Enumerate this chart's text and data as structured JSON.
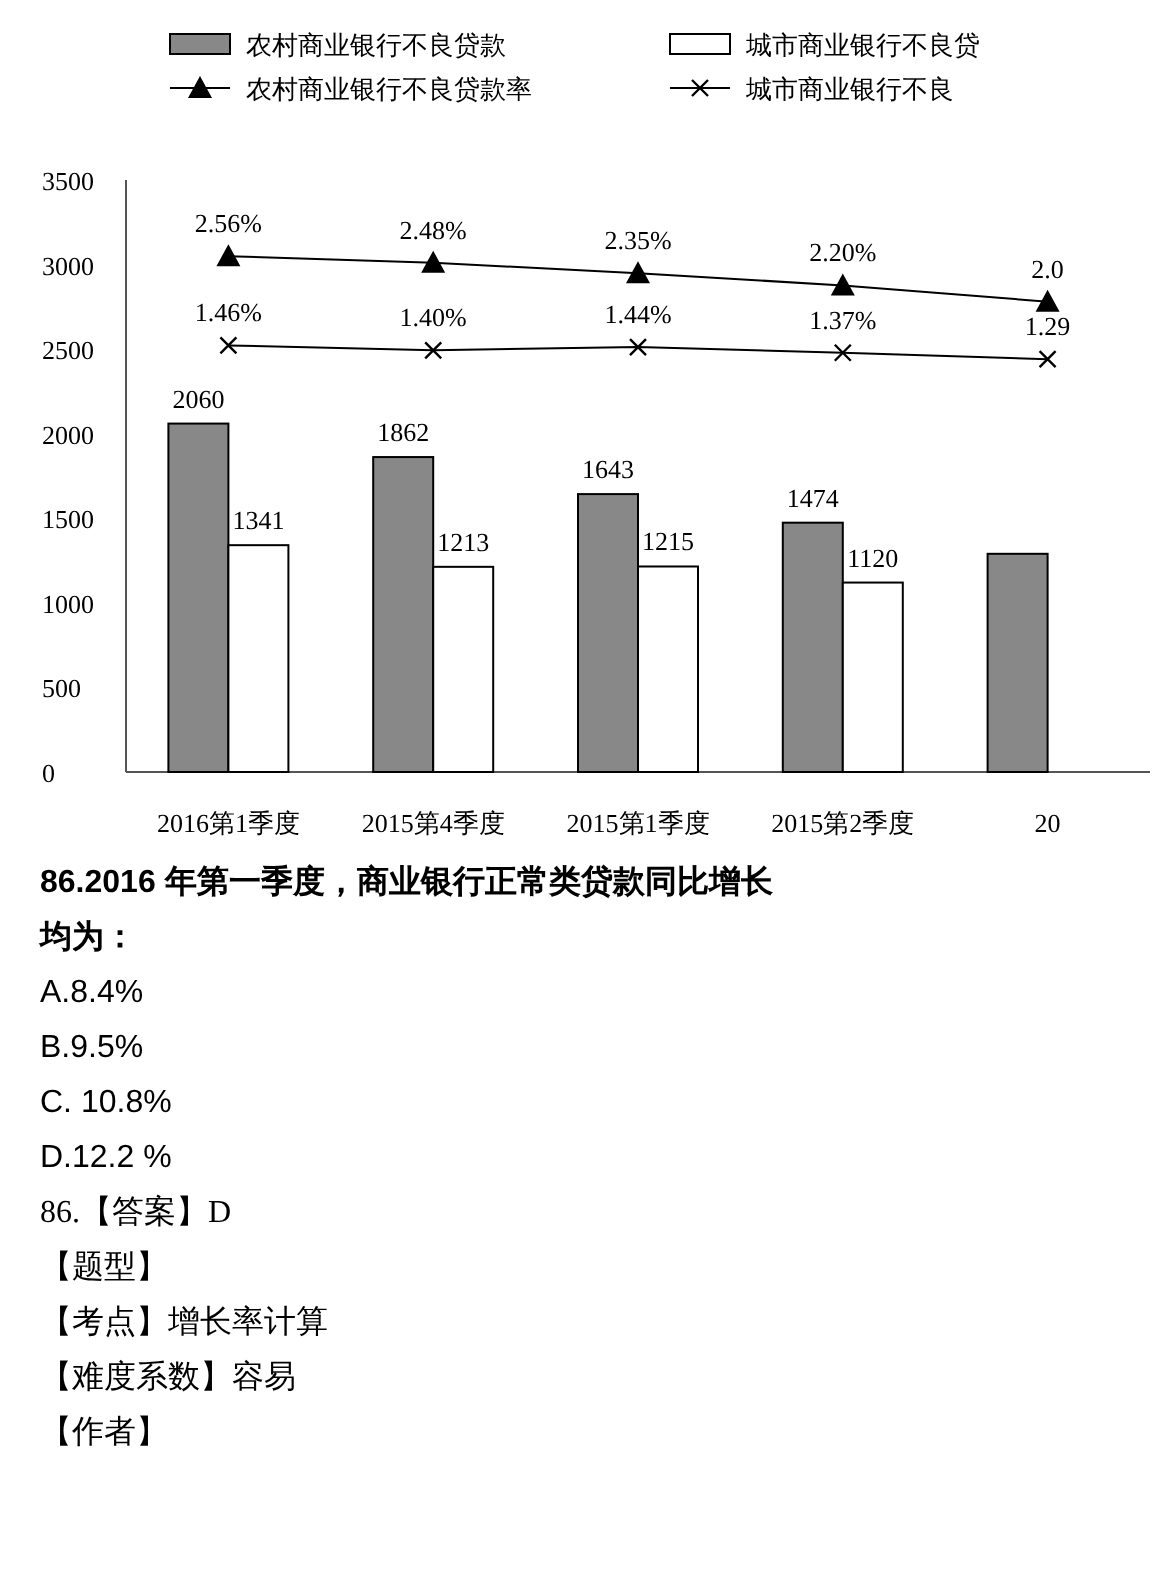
{
  "chart_data": {
    "type": "bar",
    "categories": [
      "2016第1季度",
      "2015第4季度",
      "2015第1季度",
      "2015第2季度",
      "20"
    ],
    "ylim": [
      0,
      3500
    ],
    "yticks": [
      0,
      500,
      1000,
      1500,
      2000,
      2500,
      3000,
      3500
    ],
    "y2lim": [
      -3.8,
      3.5
    ],
    "legend": "top",
    "grid": false,
    "series": [
      {
        "name": "农村商业银行不良贷款",
        "color": "#888888",
        "values": [
          2060,
          1862,
          1643,
          1474,
          1290
        ],
        "value_labels": [
          "2060",
          "1862",
          "1643",
          "1474",
          null
        ]
      },
      {
        "name": "城市商业银行不良贷",
        "color": "#ffffff",
        "values": [
          1341,
          1213,
          1215,
          1120,
          null
        ],
        "value_labels": [
          "1341",
          "1213",
          "1215",
          "1120",
          null
        ]
      },
      {
        "name": "农村商业银行不良贷款率",
        "type": "line",
        "axis": "y2",
        "marker": "triangle",
        "color": "#000000",
        "values": [
          2.56,
          2.48,
          2.35,
          2.2,
          2.0
        ],
        "value_labels": [
          "2.56%",
          "2.48%",
          "2.35%",
          "2.20%",
          "2.0"
        ]
      },
      {
        "name": "城市商业银行不良",
        "type": "line",
        "axis": "y2",
        "marker": "cross",
        "color": "#000000",
        "values": [
          1.46,
          1.4,
          1.44,
          1.37,
          1.29
        ],
        "value_labels": [
          "1.46%",
          "1.40%",
          "1.44%",
          "1.37%",
          "1.29"
        ]
      }
    ],
    "annotations": [
      "86.2016 年第一季度，商业银行正常类贷款同比增长",
      "均为：",
      "A.8.4%",
      "B.9.5%",
      "C. 10.8%",
      "D.12.2 %",
      "86.【答案】D",
      "【题型】",
      "【考点】增长率计算",
      "【难度系数】容易",
      "【作者】"
    ]
  }
}
